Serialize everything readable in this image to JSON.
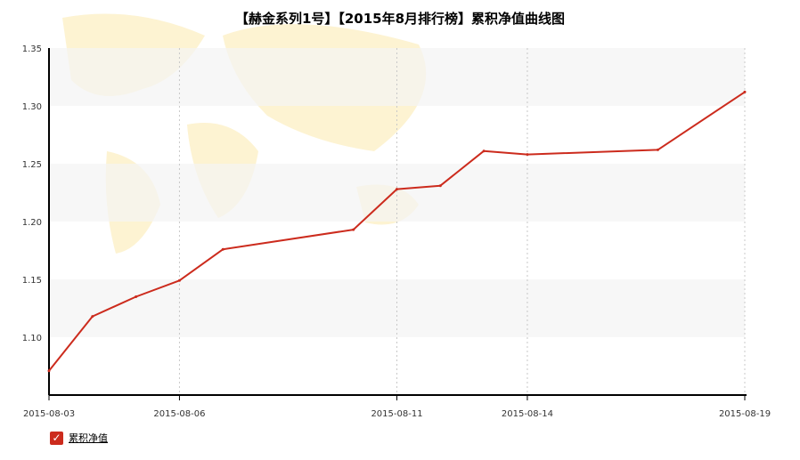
{
  "chart_data": {
    "type": "line",
    "title": "【赫金系列1号】【2015年8月排行榜】累积净值曲线图",
    "x": [
      "2015-08-03",
      "2015-08-04",
      "2015-08-05",
      "2015-08-06",
      "2015-08-07",
      "2015-08-10",
      "2015-08-11",
      "2015-08-12",
      "2015-08-13",
      "2015-08-14",
      "2015-08-17",
      "2015-08-19"
    ],
    "x_tick_labels": [
      "2015-08-03",
      "2015-08-06",
      "2015-08-11",
      "2015-08-14",
      "2015-08-19"
    ],
    "y_tick_labels": [
      "1.35",
      "1.30",
      "1.25",
      "1.20",
      "1.15",
      "1.10"
    ],
    "ylim": [
      1.05,
      1.35
    ],
    "series": [
      {
        "name": "累积净值",
        "values": [
          1.071,
          1.118,
          1.135,
          1.149,
          1.176,
          1.193,
          1.228,
          1.231,
          1.261,
          1.258,
          1.262,
          1.312
        ]
      }
    ],
    "line_color": "#cc2b1d",
    "grid": true,
    "legend_position": "bottom-left"
  },
  "legend": {
    "checked_icon": "check-icon",
    "label": "累积净值"
  }
}
